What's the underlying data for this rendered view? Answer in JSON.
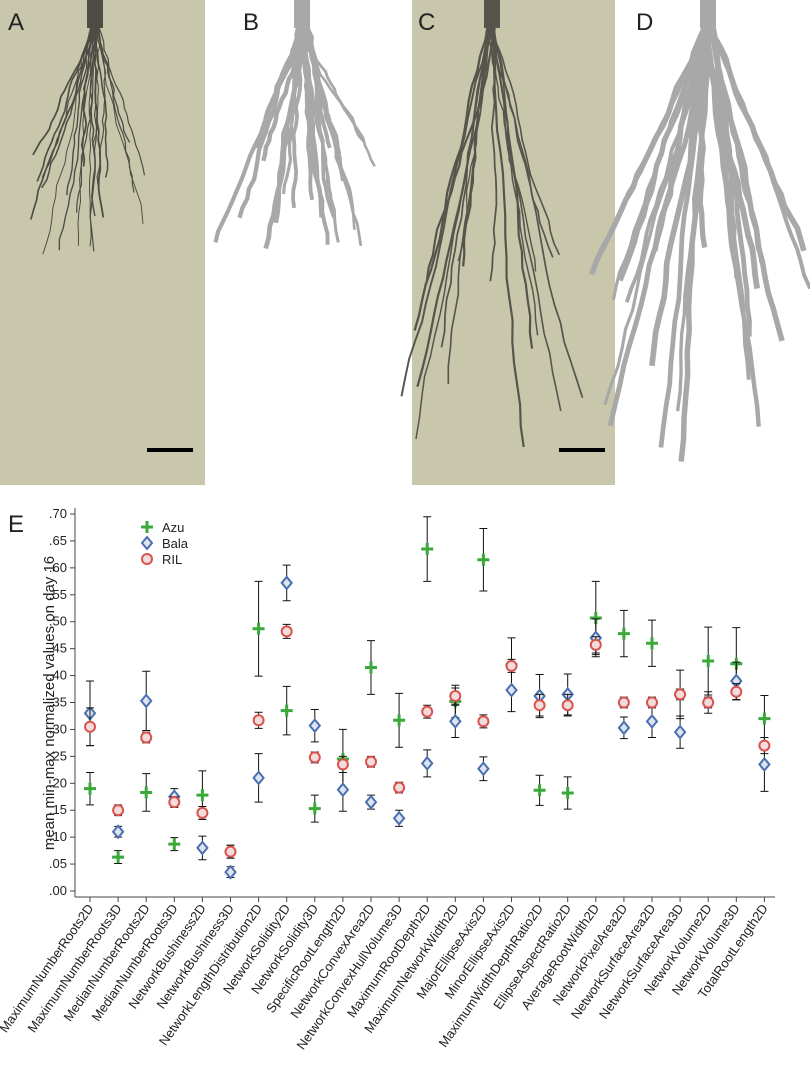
{
  "panels": [
    {
      "label": "A"
    },
    {
      "label": "B"
    },
    {
      "label": "C"
    },
    {
      "label": "D"
    }
  ],
  "chart_data": {
    "type": "scatter",
    "panel_label": "E",
    "y_label": "mean min-max normalized values on day 16",
    "categories": [
      "MaximumNumberRoots2D",
      "MaximumNumberRoots3D",
      "MedianNumberRoots2D",
      "MedianNumberRoots3D",
      "NetworkBushiness2D",
      "NetworkBushiness3D",
      "NetworkLengthDistribution2D",
      "NetworkSolidity2D",
      "NetworkSolidity3D",
      "SpecificRootLength2D",
      "NetworkConvexArea2D",
      "NetworkConvexHullVolume3D",
      "MaximumRootDepth2D",
      "MaximumNetworkWidth2D",
      "MajorEllipseAxis2D",
      "MinorEllipseAxis2D",
      "MaximumWidthDepthRatio2D",
      "EllipseAspectRatio2D",
      "AverageRootWidth2D",
      "NetworkPixelArea2D",
      "NetworkSurfaceArea2D",
      "NetworkSurfaceArea3D",
      "NetworkVolume2D",
      "NetworkVolume3D",
      "TotalRootLength2D"
    ],
    "series": [
      {
        "name": "Azu",
        "color": "#3aa83a",
        "marker": "plus",
        "values": [
          0.19,
          0.063,
          0.183,
          0.087,
          0.178,
          0.073,
          0.487,
          0.335,
          0.153,
          0.245,
          0.415,
          0.317,
          0.635,
          0.352,
          0.615,
          0.42,
          0.187,
          0.182,
          0.507,
          0.478,
          0.46,
          0.365,
          0.427,
          0.422,
          0.32
        ],
        "errors": [
          0.03,
          0.012,
          0.035,
          0.012,
          0.045,
          0.012,
          0.088,
          0.045,
          0.025,
          0.055,
          0.05,
          0.05,
          0.06,
          0.03,
          0.058,
          0.05,
          0.028,
          0.03,
          0.068,
          0.043,
          0.043,
          0.045,
          0.063,
          0.067,
          0.043
        ]
      },
      {
        "name": "Bala",
        "color": "#4a6fb0",
        "marker": "diamond",
        "values": [
          0.33,
          0.11,
          0.353,
          0.175,
          0.08,
          0.035,
          0.21,
          0.572,
          0.307,
          0.188,
          0.165,
          0.135,
          0.237,
          0.315,
          0.227,
          0.373,
          0.362,
          0.365,
          0.47,
          0.303,
          0.315,
          0.295,
          0.35,
          0.39,
          0.235
        ],
        "errors": [
          0.06,
          0.01,
          0.055,
          0.015,
          0.022,
          0.01,
          0.045,
          0.033,
          0.03,
          0.04,
          0.013,
          0.015,
          0.025,
          0.03,
          0.022,
          0.04,
          0.04,
          0.038,
          0.035,
          0.02,
          0.03,
          0.03,
          0.02,
          0.035,
          0.05
        ]
      },
      {
        "name": "RIL",
        "color": "#d9534f",
        "marker": "circle",
        "values": [
          0.305,
          0.15,
          0.285,
          0.165,
          0.145,
          0.073,
          0.317,
          0.482,
          0.248,
          0.235,
          0.24,
          0.192,
          0.333,
          0.362,
          0.315,
          0.418,
          0.345,
          0.345,
          0.457,
          0.35,
          0.35,
          0.365,
          0.35,
          0.37,
          0.27
        ],
        "errors": [
          0.035,
          0.01,
          0.01,
          0.01,
          0.012,
          0.012,
          0.015,
          0.013,
          0.01,
          0.015,
          0.01,
          0.01,
          0.012,
          0.015,
          0.012,
          0.012,
          0.02,
          0.02,
          0.015,
          0.01,
          0.01,
          0.01,
          0.01,
          0.015,
          0.015
        ]
      }
    ],
    "ylim": [
      0,
      0.7
    ],
    "yticks": [
      {
        "value": 0,
        "label": ".00"
      },
      {
        "value": 0.05,
        "label": ".05"
      },
      {
        "value": 0.1,
        "label": ".10"
      },
      {
        "value": 0.15,
        "label": ".15"
      },
      {
        "value": 0.2,
        "label": ".20"
      },
      {
        "value": 0.25,
        "label": ".25"
      },
      {
        "value": 0.3,
        "label": ".30"
      },
      {
        "value": 0.35,
        "label": ".35"
      },
      {
        "value": 0.4,
        "label": ".40"
      },
      {
        "value": 0.45,
        "label": ".45"
      },
      {
        "value": 0.5,
        "label": ".50"
      },
      {
        "value": 0.55,
        "label": ".55"
      },
      {
        "value": 0.6,
        "label": ".60"
      },
      {
        "value": 0.65,
        "label": ".65"
      },
      {
        "value": 0.7,
        "label": ".70"
      }
    ],
    "legend": "upper left",
    "grid": false
  }
}
